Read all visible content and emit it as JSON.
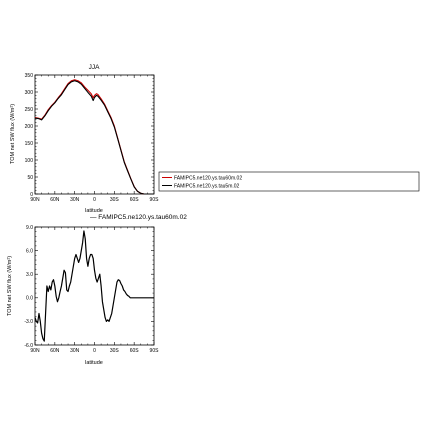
{
  "chart_data": [
    {
      "type": "line",
      "title": "JJA",
      "xlabel": "latitude",
      "ylabel": "TOM net SW flux (W/m²)",
      "xticks": [
        "90N",
        "60N",
        "30N",
        "0",
        "30S",
        "60S",
        "90S"
      ],
      "xlim": [
        90,
        -90
      ],
      "ylim": [
        0,
        350
      ],
      "yticks": [
        "0",
        "50",
        "100",
        "150",
        "200",
        "250",
        "300",
        "350"
      ],
      "x": [
        90,
        85,
        80,
        75,
        70,
        65,
        60,
        55,
        50,
        45,
        40,
        35,
        30,
        25,
        20,
        15,
        10,
        5,
        2,
        0,
        -3,
        -5,
        -10,
        -15,
        -20,
        -25,
        -30,
        -35,
        -40,
        -45,
        -50,
        -55,
        -60,
        -65,
        -70,
        -75,
        -80,
        -85,
        -90
      ],
      "series": [
        {
          "name": "FAMIPC5.ne120.ys.tau60m.02",
          "color": "#cc0000",
          "values": [
            225,
            223,
            220,
            232,
            248,
            260,
            270,
            283,
            295,
            310,
            325,
            333,
            336,
            333,
            327,
            315,
            305,
            295,
            283,
            290,
            295,
            293,
            280,
            265,
            245,
            225,
            200,
            165,
            130,
            95,
            70,
            45,
            22,
            8,
            2,
            0,
            0,
            0,
            0
          ]
        },
        {
          "name": "FAMIPC5.ne120.ys.tau5m.02",
          "color": "#000000",
          "values": [
            223,
            222,
            218,
            230,
            245,
            258,
            268,
            281,
            292,
            307,
            322,
            330,
            333,
            330,
            323,
            311,
            299,
            288,
            275,
            284,
            290,
            288,
            276,
            262,
            242,
            222,
            197,
            163,
            128,
            93,
            68,
            44,
            21,
            8,
            2,
            0,
            0,
            0,
            0
          ]
        }
      ],
      "legend": "right"
    },
    {
      "type": "line",
      "title": "— FAMIPC5.ne120.ys.tau60m.02",
      "xlabel": "latitude",
      "ylabel": "TOM net SW flux (W/m²)",
      "xticks": [
        "90N",
        "60N",
        "30N",
        "0",
        "30S",
        "60S",
        "90S"
      ],
      "xlim": [
        90,
        -90
      ],
      "ylim": [
        -6.0,
        9.0
      ],
      "yticks": [
        "-6.0",
        "-3.0",
        "0.0",
        "3.0",
        "6.0",
        "9.0"
      ],
      "x": [
        90,
        88,
        86,
        84,
        82,
        80,
        78,
        76,
        74,
        72,
        70,
        68,
        66,
        64,
        62,
        60,
        58,
        56,
        54,
        52,
        50,
        48,
        46,
        44,
        42,
        40,
        38,
        36,
        34,
        32,
        30,
        28,
        26,
        24,
        22,
        20,
        18,
        16,
        14,
        12,
        10,
        8,
        6,
        4,
        2,
        0,
        -2,
        -4,
        -6,
        -8,
        -10,
        -12,
        -14,
        -16,
        -18,
        -20,
        -22,
        -24,
        -26,
        -28,
        -30,
        -32,
        -34,
        -36,
        -38,
        -40,
        -42,
        -44,
        -46,
        -48,
        -50,
        -52,
        -54,
        -56,
        -58,
        -60,
        -62,
        -64,
        -66,
        -68,
        -70,
        -75,
        -80,
        -85,
        -90
      ],
      "series": [
        {
          "name": "FAMIPC5.ne120.ys.tau60m.02",
          "color": "#000000",
          "values": [
            -2.5,
            -3.0,
            -3.2,
            -2.0,
            -3.0,
            -4.5,
            -5.2,
            -5.5,
            -2.0,
            1.5,
            0.8,
            1.5,
            1.0,
            2.0,
            2.3,
            1.5,
            0.2,
            -0.5,
            0.0,
            0.8,
            1.5,
            2.5,
            3.5,
            3.2,
            1.0,
            0.8,
            1.5,
            2.0,
            3.0,
            4.0,
            5.0,
            5.5,
            5.0,
            4.5,
            5.0,
            6.0,
            7.0,
            8.5,
            7.5,
            5.0,
            4.0,
            5.0,
            5.5,
            5.5,
            5.0,
            3.5,
            2.5,
            2.0,
            2.5,
            3.0,
            1.5,
            -0.5,
            -1.5,
            -2.5,
            -3.0,
            -2.8,
            -3.0,
            -2.5,
            -2.0,
            -1.0,
            0.0,
            1.0,
            2.0,
            2.3,
            2.2,
            1.8,
            1.5,
            1.0,
            0.8,
            0.5,
            0.3,
            0.2,
            0.0,
            0.0,
            0.0,
            0.0,
            0.0,
            0.0,
            0.0,
            0.0,
            0.0,
            0.0,
            0.0,
            0.0,
            0.0
          ]
        }
      ]
    }
  ]
}
